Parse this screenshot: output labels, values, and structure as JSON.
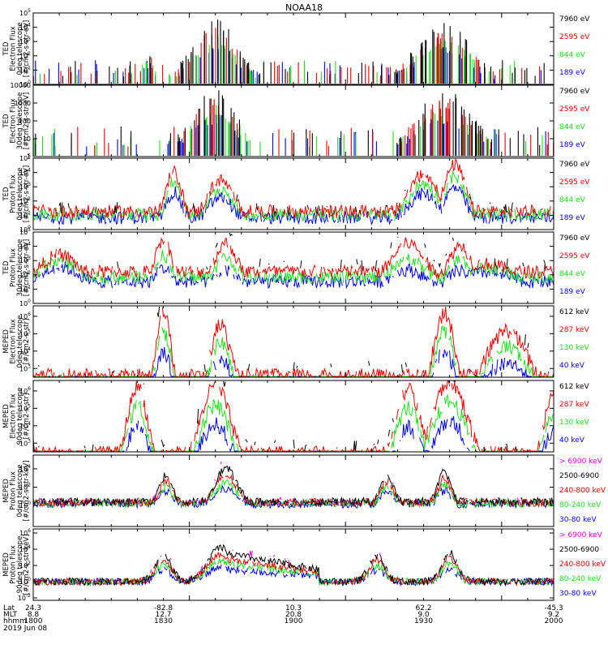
{
  "title": "NOAA18",
  "colors": {
    "black": "#000000",
    "blue": "#0000ee",
    "red": "#ee0000",
    "green": "#22dd22",
    "magenta": "#dd00dd"
  },
  "footer": {
    "rows": [
      {
        "label": "Lat",
        "values": [
          "24.3",
          "-82.8",
          "10.3",
          "62.2",
          "-45.3"
        ]
      },
      {
        "label": "MLT",
        "values": [
          "8.8",
          "12.7",
          "20.8",
          "9.0",
          "9.2"
        ]
      },
      {
        "label": "hhmm",
        "values": [
          "1800",
          "1830",
          "1900",
          "1930",
          "2000"
        ]
      }
    ],
    "date": "2019 Jun 08"
  },
  "chart_data": [
    {
      "type": "line",
      "ylabel": [
        "TED",
        "Electron Flux",
        "0deg telescope",
        "[#/cm2-s-str-eV]"
      ],
      "ytick_labels": [
        "10^0",
        "10^1",
        "10^2",
        "10^3",
        "10^4",
        "10^5"
      ],
      "log": true,
      "ylim_exp": [
        0,
        5
      ],
      "series": [
        {
          "name": "7960 eV",
          "color": "#000000"
        },
        {
          "name": "2595 eV",
          "color": "#ee0000"
        },
        {
          "name": "844 eV",
          "color": "#22dd22"
        },
        {
          "name": "189 eV",
          "color": "#0000ee"
        }
      ],
      "note": "sparse spikes; bursts near 1825-1833 and 1922-1934 reaching ~10^4"
    },
    {
      "type": "line",
      "ylabel": [
        "TED",
        "Electron Flux",
        "30deg telescope",
        "[#/cm2-s-str-eV]"
      ],
      "ytick_labels": [
        "1",
        "10",
        "100",
        "1000",
        "10000"
      ],
      "log": true,
      "ylim_exp": [
        0,
        4
      ],
      "series": [
        {
          "name": "7960 eV",
          "color": "#000000"
        },
        {
          "name": "2595 eV",
          "color": "#ee0000"
        },
        {
          "name": "844 eV",
          "color": "#22dd22"
        },
        {
          "name": "189 eV",
          "color": "#0000ee"
        }
      ],
      "note": "sparse spikes; bursts near 1825-1833 and 1922-1934 reaching ~1000-5000"
    },
    {
      "type": "line",
      "ylabel": [
        "TED",
        "Proton Flux",
        "0deg telescope",
        "[#/cm2-s-str-eV]"
      ],
      "ytick_labels": [
        "10^0",
        "10^1",
        "10^2",
        "10^3",
        "10^4",
        "10^5"
      ],
      "log": true,
      "ylim_exp": [
        0,
        5
      ],
      "series": [
        {
          "name": "7960 eV",
          "color": "#000000"
        },
        {
          "name": "2595 eV",
          "color": "#ee0000"
        },
        {
          "name": "844 eV",
          "color": "#22dd22"
        },
        {
          "name": "189 eV",
          "color": "#0000ee"
        }
      ],
      "note": "green baseline ~10^1-10^2 throughout; peaks ~10^4 near 1818, 1832, 1925-1930"
    },
    {
      "type": "line",
      "ylabel": [
        "TED",
        "Proton Flux",
        "30deg telescope",
        "[#/cm2-s-str-eV]"
      ],
      "ytick_labels": [
        "10^0",
        "10^1",
        "10^2",
        "10^3",
        "10^4",
        "10^5"
      ],
      "log": true,
      "ylim_exp": [
        0,
        5
      ],
      "series": [
        {
          "name": "7960 eV",
          "color": "#000000"
        },
        {
          "name": "2595 eV",
          "color": "#ee0000"
        },
        {
          "name": "844 eV",
          "color": "#22dd22"
        },
        {
          "name": "189 eV",
          "color": "#0000ee"
        }
      ],
      "note": "green broad humps ~10^3 near 1807, 1842, 1935; blue noise 10^1-10^2"
    },
    {
      "type": "line",
      "ylabel": [
        "MEPED",
        "Electron Flux",
        "0deg telescope",
        "[#/cm2-s-str]"
      ],
      "ytick_labels": [
        "10^3",
        "10^4",
        "10^5",
        "10^6"
      ],
      "log": true,
      "ylim_exp": [
        2.5,
        6.6
      ],
      "series": [
        {
          "name": "612 keV",
          "color": "#000000"
        },
        {
          "name": "287 keV",
          "color": "#ee0000"
        },
        {
          "name": "130 keV",
          "color": "#22dd22"
        },
        {
          "name": "40 keV",
          "color": "#0000ee"
        }
      ],
      "note": "blue peaks ~10^6 near 1819 and 1932; broad blue hump ~10^5 near 1950"
    },
    {
      "type": "line",
      "ylabel": [
        "MEPED",
        "Electron Flux",
        "90deg telescope",
        "[#/cm2-s-str]"
      ],
      "ytick_labels": [
        "10^3",
        "10^4",
        "10^5",
        "10^6"
      ],
      "log": true,
      "ylim_exp": [
        2.5,
        6.6
      ],
      "series": [
        {
          "name": "612 keV",
          "color": "#000000"
        },
        {
          "name": "287 keV",
          "color": "#ee0000"
        },
        {
          "name": "130 keV",
          "color": "#22dd22"
        },
        {
          "name": "40 keV",
          "color": "#0000ee"
        }
      ],
      "note": "smooth belts: blue ~10^6 near 1818, 1832-1840, 1930-1938; rising at 2000"
    },
    {
      "type": "line",
      "ylabel": [
        "MEPED",
        "Proton Flux",
        "0deg telescope",
        "[#/cm2-s-str-keV]"
      ],
      "ytick_labels": [
        "10^0",
        "10^2",
        "10^4"
      ],
      "log": true,
      "ylim_exp": [
        -2.3,
        5.5
      ],
      "series": [
        {
          "name": "> 6900 keV",
          "color": "#dd00dd"
        },
        {
          "name": "2500-6900",
          "color": "#000000"
        },
        {
          "name": "240-800 keV",
          "color": "#ee0000"
        },
        {
          "name": "80-240 keV",
          "color": "#22dd22"
        },
        {
          "name": "30-80 keV",
          "color": "#0000ee"
        }
      ],
      "note": "blue peaks ~10^4-10^5 near 1820, 1831, 1922, 1928; baseline ~10^0.5"
    },
    {
      "type": "line",
      "ylabel": [
        "MEPED",
        "Proton Flux",
        "90deg telescope",
        "[#/cm2-s-str-keV]"
      ],
      "ytick_labels": [
        "10^-2",
        "10^0",
        "10^2",
        "10^4",
        "10^6"
      ],
      "log": true,
      "ylim_exp": [
        -2.3,
        6.5
      ],
      "series": [
        {
          "name": "> 6900 keV",
          "color": "#dd00dd"
        },
        {
          "name": "2500-6900",
          "color": "#000000"
        },
        {
          "name": "240-800 keV",
          "color": "#ee0000"
        },
        {
          "name": "80-240 keV",
          "color": "#22dd22"
        },
        {
          "name": "30-80 keV",
          "color": "#0000ee"
        }
      ],
      "note": "blue peaks ~10^4-10^5 near 1820, 1832, 1922, 1930; decay tail after 1840"
    }
  ]
}
